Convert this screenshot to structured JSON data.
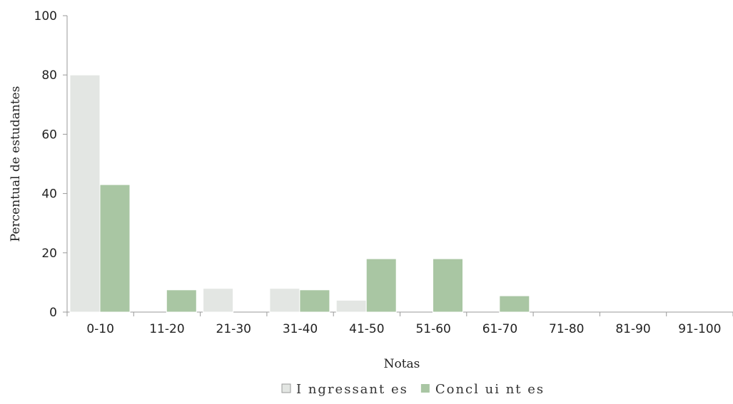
{
  "chart_data": {
    "type": "bar",
    "title": "",
    "xlabel": "Notas",
    "ylabel": "Percentual de estudantes",
    "categories": [
      "0-10",
      "11-20",
      "21-30",
      "31-40",
      "41-50",
      "51-60",
      "61-70",
      "71-80",
      "81-90",
      "91-100"
    ],
    "ylim": [
      0,
      100
    ],
    "yticks": [
      0,
      20,
      40,
      60,
      80,
      100
    ],
    "grid": false,
    "legend_position": "bottom",
    "series": [
      {
        "name": "Ingressantes",
        "legend_label": "I ngressant es",
        "color": "#e3e6e3",
        "values": [
          80,
          0,
          8,
          8,
          4,
          0,
          0,
          0,
          0,
          0
        ]
      },
      {
        "name": "Concluintes",
        "legend_label": "Concl ui nt es",
        "color": "#a9c6a3",
        "values": [
          43,
          7.5,
          0,
          7.5,
          18,
          18,
          5.5,
          0,
          0,
          0
        ]
      }
    ]
  }
}
